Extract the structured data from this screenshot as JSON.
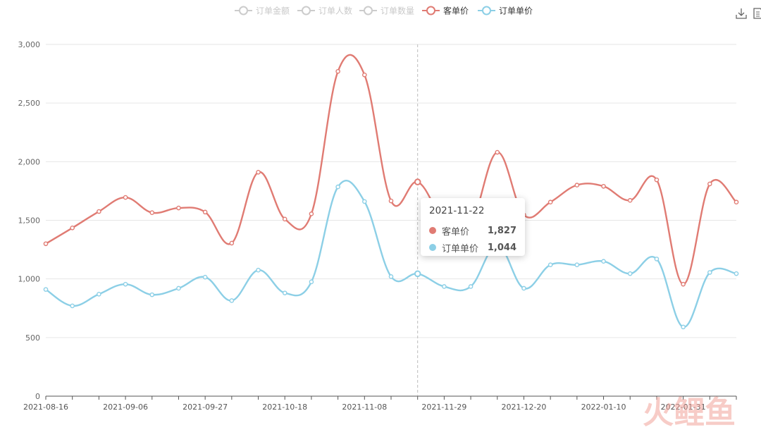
{
  "legend": {
    "items": [
      {
        "name": "订单金额",
        "active": false,
        "color": "#cccccc"
      },
      {
        "name": "订单人数",
        "active": false,
        "color": "#cccccc"
      },
      {
        "name": "订单数量",
        "active": false,
        "color": "#cccccc"
      },
      {
        "name": "客单价",
        "active": true,
        "color": "#e07b73"
      },
      {
        "name": "订单单价",
        "active": true,
        "color": "#8ccfe6"
      }
    ]
  },
  "toolbox": {
    "icons": [
      "download-icon",
      "data-view-icon"
    ]
  },
  "tooltip": {
    "date": "2021-11-22",
    "rows": [
      {
        "name": "客单价",
        "value": "1,827",
        "color": "#e07b73"
      },
      {
        "name": "订单单价",
        "value": "1,044",
        "color": "#8ccfe6"
      }
    ]
  },
  "watermark": {
    "text": "火鲤鱼"
  },
  "chart_data": {
    "type": "line",
    "x": [
      "2021-08-16",
      "2021-08-23",
      "2021-08-30",
      "2021-09-06",
      "2021-09-13",
      "2021-09-20",
      "2021-09-27",
      "2021-10-04",
      "2021-10-11",
      "2021-10-18",
      "2021-10-25",
      "2021-11-01",
      "2021-11-08",
      "2021-11-15",
      "2021-11-22",
      "2021-11-29",
      "2021-12-06",
      "2021-12-13",
      "2021-12-20",
      "2021-12-27",
      "2022-01-03",
      "2022-01-10",
      "2022-01-17",
      "2022-01-24",
      "2022-01-31",
      "2022-02-07",
      "2022-02-14"
    ],
    "x_tick_labels": [
      "2021-08-16",
      "2021-09-06",
      "2021-09-27",
      "2021-10-18",
      "2021-11-08",
      "2021-11-29",
      "2021-12-20",
      "2022-01-10",
      "2022-01-31"
    ],
    "y_ticks": [
      0,
      500,
      1000,
      1500,
      2000,
      2500,
      3000
    ],
    "ylim": [
      0,
      3000
    ],
    "grid": true,
    "legend_position": "top-center",
    "highlight_x": "2021-11-22",
    "series": [
      {
        "name": "客单价",
        "color": "#e07b73",
        "values": [
          1300,
          1435,
          1575,
          1695,
          1565,
          1605,
          1570,
          1305,
          1910,
          1510,
          1555,
          2770,
          2740,
          1665,
          1827,
          1500,
          1470,
          2080,
          1545,
          1655,
          1800,
          1790,
          1670,
          1845,
          955,
          1810,
          1655
        ]
      },
      {
        "name": "订单单价",
        "color": "#8ccfe6",
        "values": [
          910,
          770,
          870,
          955,
          865,
          920,
          1015,
          815,
          1075,
          880,
          975,
          1785,
          1660,
          1020,
          1044,
          935,
          935,
          1290,
          920,
          1120,
          1120,
          1150,
          1045,
          1170,
          590,
          1055,
          1045
        ]
      }
    ]
  }
}
